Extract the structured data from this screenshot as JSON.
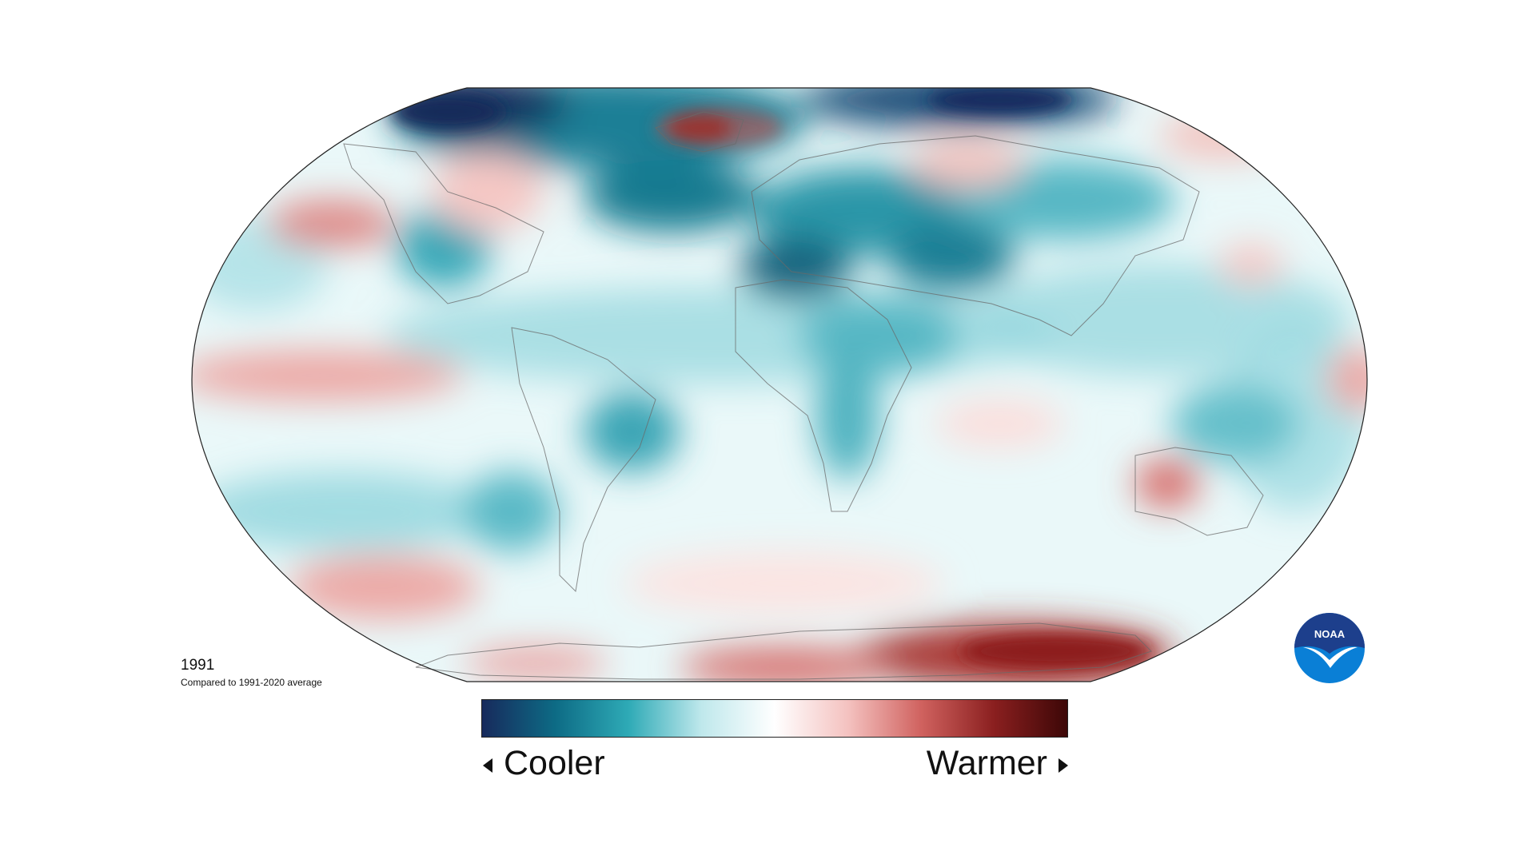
{
  "map": {
    "year": "1991",
    "baseline": "Compared to 1991-2020 average",
    "projection": "Robinson",
    "variable": "temperature anomaly"
  },
  "legend": {
    "cool_label": "Cooler",
    "warm_label": "Warmer",
    "colors": [
      "#172a5c",
      "#0d6b85",
      "#2eaab6",
      "#bfe8ec",
      "#ffffff",
      "#f4c2c0",
      "#d0625f",
      "#8a1f1f",
      "#3d0707"
    ]
  },
  "logo": {
    "text": "NOAA",
    "colors": {
      "top": "#1d3f8c",
      "bottom": "#0a7fd6",
      "bird": "#ffffff"
    }
  },
  "anomaly_regions": [
    {
      "name": "Greenland",
      "tone": "strong-warm"
    },
    {
      "name": "Antarctica (East)",
      "tone": "strong-warm"
    },
    {
      "name": "North Pacific",
      "tone": "warm"
    },
    {
      "name": "Eastern Tropical Pacific",
      "tone": "warm"
    },
    {
      "name": "Australia (west)",
      "tone": "warm"
    },
    {
      "name": "Canadian Arctic",
      "tone": "strong-cool"
    },
    {
      "name": "North Atlantic",
      "tone": "cool"
    },
    {
      "name": "Middle East / North Africa",
      "tone": "cool"
    },
    {
      "name": "Central Asia",
      "tone": "cool"
    }
  ]
}
